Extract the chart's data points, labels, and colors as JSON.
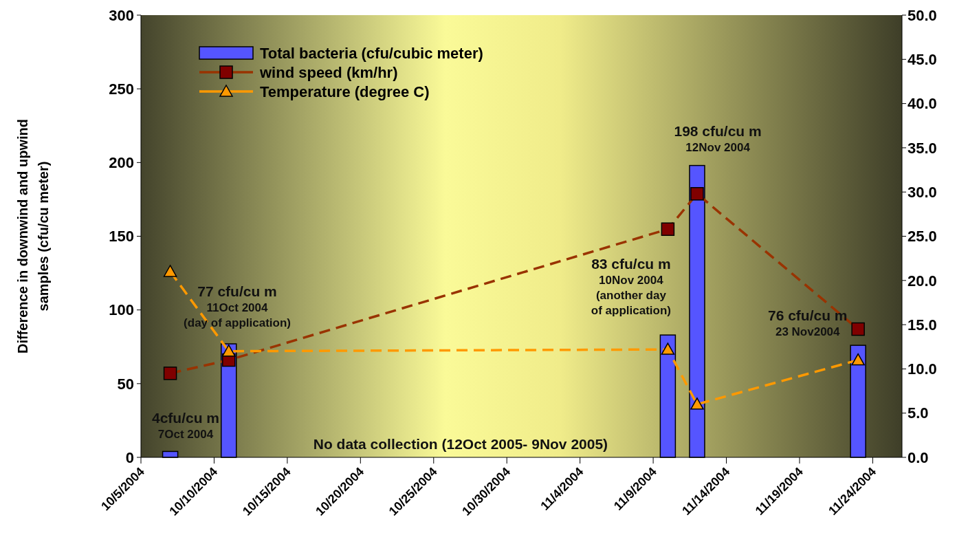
{
  "chart_data": {
    "type": "bar",
    "ylabel": "Difference in downwind and upwind samples (cfu/cu meter)",
    "x": [
      "2004-10-07",
      "2004-10-11",
      "2004-11-10",
      "2004-11-12",
      "2004-11-23"
    ],
    "series": [
      {
        "name": "Total bacteria (cfu/cubic meter)",
        "color": "#5555ff",
        "values": [
          4,
          77,
          83,
          198,
          76
        ]
      },
      {
        "type": "line",
        "name": "wind speed (km/hr)",
        "color": "#993300",
        "axis": "y2",
        "marker": "square",
        "line_style": "dashed",
        "values": [
          9.5,
          11.0,
          25.8,
          29.8,
          14.5
        ]
      },
      {
        "type": "line",
        "name": "Temperature (degree C)",
        "color": "#ff9900",
        "axis": "y2",
        "marker": "triangle",
        "line_style": "dashed",
        "values": [
          21.0,
          12.0,
          12.2,
          6.0,
          11.0
        ]
      }
    ],
    "xlim": [
      "2004-10-05",
      "2004-11-26"
    ],
    "xticks": [
      {
        "value": "2004-10-05",
        "label": "10/5/2004"
      },
      {
        "value": "2004-10-10",
        "label": "10/10/2004"
      },
      {
        "value": "2004-10-15",
        "label": "10/15/2004"
      },
      {
        "value": "2004-10-20",
        "label": "10/20/2004"
      },
      {
        "value": "2004-10-25",
        "label": "10/25/2004"
      },
      {
        "value": "2004-10-30",
        "label": "10/30/2004"
      },
      {
        "value": "2004-11-04",
        "label": "11/4/2004"
      },
      {
        "value": "2004-11-09",
        "label": "11/9/2004"
      },
      {
        "value": "2004-11-14",
        "label": "11/14/2004"
      },
      {
        "value": "2004-11-19",
        "label": "11/19/2004"
      },
      {
        "value": "2004-11-24",
        "label": "11/24/2004"
      }
    ],
    "ylim": [
      0,
      300
    ],
    "yticks": [
      0,
      50,
      100,
      150,
      200,
      250,
      300
    ],
    "y2lim": [
      0,
      50
    ],
    "y2ticks": [
      {
        "value": 0,
        "label": "0.0"
      },
      {
        "value": 5,
        "label": "5.0"
      },
      {
        "value": 10,
        "label": "10.0"
      },
      {
        "value": 15,
        "label": "15.0"
      },
      {
        "value": 20,
        "label": "20.0"
      },
      {
        "value": 25,
        "label": "25.0"
      },
      {
        "value": 30,
        "label": "30.0"
      },
      {
        "value": 35,
        "label": "35.0"
      },
      {
        "value": 40,
        "label": "40.0"
      },
      {
        "value": 45,
        "label": "45.0"
      },
      {
        "value": 50,
        "label": "50.0"
      }
    ],
    "legend": "top left",
    "annotations": [
      "4cfu/cu m\n7Oct 2004",
      "77 cfu/cu m\n11Oct 2004\n(day of application)",
      "83 cfu/cu m\n10Nov 2004\n(another day\nof application)",
      "198 cfu/cu m\n12Nov 2004",
      "76 cfu/cu m\n23 Nov2004",
      "No data collection (12Oct 2005- 9Nov 2005)"
    ]
  }
}
